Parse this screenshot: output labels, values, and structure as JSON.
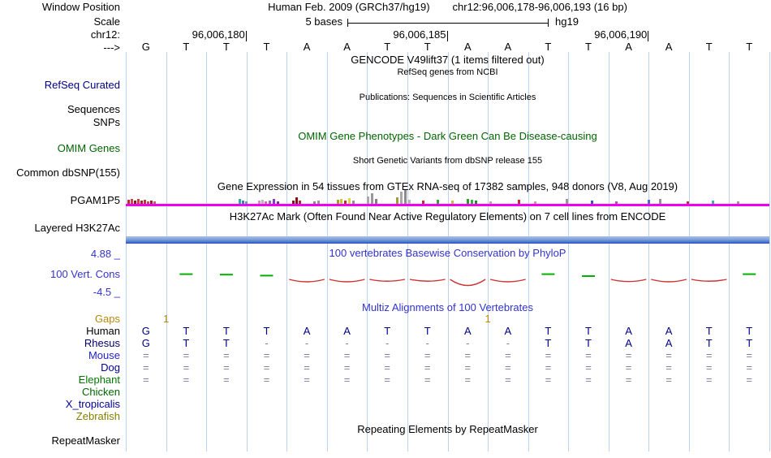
{
  "colors": {
    "guide_line": "#bdd2ec",
    "title_blue": "#3333cc",
    "track_navy": "#000080",
    "omim_green": "#006400",
    "gaps_orange": "#b8860b",
    "gtex_line_magenta": "#ee00ee",
    "cons_positive_green": "#00b000",
    "cons_negative_red": "#cc3333",
    "align_base_navy": "#000080",
    "align_symbol_gray": "#8080a0"
  },
  "header": {
    "window_position_label": "Window Position",
    "assembly": "Human Feb. 2009 (GRCh37/hg19)",
    "position": "chr12:96,006,178-96,006,193 (16 bp)",
    "scale_label": "Scale",
    "scale_bases": "5 bases",
    "genome": "hg19",
    "chrom_label": "chr12:",
    "strand_label": "--->"
  },
  "ruler": {
    "coords": [
      {
        "label": "96,006,180",
        "boundary": 3
      },
      {
        "label": "96,006,185",
        "boundary": 8
      },
      {
        "label": "96,006,190",
        "boundary": 13
      }
    ]
  },
  "sequence": [
    "G",
    "T",
    "T",
    "T",
    "A",
    "A",
    "T",
    "T",
    "A",
    "A",
    "T",
    "T",
    "A",
    "A",
    "T",
    "T"
  ],
  "tracks": {
    "gencode": {
      "title": "GENCODE V49lift37 (1 items filtered out)"
    },
    "refseq": {
      "subtitle": "RefSeq genes from NCBI",
      "label": "RefSeq Curated"
    },
    "publications": {
      "title": "Publications: Sequences in Scientific Articles"
    },
    "sequences": {
      "label": "Sequences"
    },
    "snps": {
      "label": "SNPs"
    },
    "omim": {
      "title": "OMIM Gene Phenotypes - Dark Green Can Be Disease-causing",
      "label": "OMIM Genes"
    },
    "dbsnp": {
      "title": "Short Genetic Variants from dbSNP release 155",
      "label": "Common dbSNP(155)"
    },
    "gtex": {
      "title": "Gene Expression in 54 tissues from GTEx RNA-seq of 17382 samples, 948 donors (V8, Aug 2019)",
      "gene_label": "PGAM1P5",
      "bars": [
        [
          157,
          5,
          "#b03030"
        ],
        [
          161,
          6,
          "#c84848"
        ],
        [
          165,
          4,
          "#8b1a1a"
        ],
        [
          169,
          6,
          "#d04040"
        ],
        [
          173,
          4,
          "#a02828"
        ],
        [
          177,
          5,
          "#c03838"
        ],
        [
          181,
          3,
          "#b85050"
        ],
        [
          185,
          4,
          "#982020"
        ],
        [
          189,
          3,
          "#c06060"
        ],
        [
          294,
          6,
          "#2ab0a8"
        ],
        [
          298,
          4,
          "#4878c0"
        ],
        [
          302,
          3,
          "#60a0a8"
        ],
        [
          318,
          4,
          "#e088b8"
        ],
        [
          322,
          5,
          "#b8b8b8"
        ],
        [
          326,
          3,
          "#e06898"
        ],
        [
          331,
          4,
          "#9068c8"
        ],
        [
          336,
          6,
          "#8040c0"
        ],
        [
          341,
          3,
          "#683890"
        ],
        [
          360,
          4,
          "#801818"
        ],
        [
          364,
          8,
          "#901010"
        ],
        [
          368,
          4,
          "#a83030"
        ],
        [
          386,
          3,
          "#888888"
        ],
        [
          391,
          4,
          "#989898"
        ],
        [
          415,
          5,
          "#a0a030"
        ],
        [
          419,
          6,
          "#c8c828"
        ],
        [
          424,
          4,
          "#c82828"
        ],
        [
          429,
          7,
          "#d8d848"
        ],
        [
          434,
          4,
          "#909090"
        ],
        [
          452,
          9,
          "#a8a8a8"
        ],
        [
          457,
          13,
          "#989898"
        ],
        [
          462,
          6,
          "#808080"
        ],
        [
          488,
          8,
          "#a0a038"
        ],
        [
          493,
          15,
          "#a8a8a8"
        ],
        [
          498,
          17,
          "#8c8c8c"
        ],
        [
          503,
          5,
          "#b8b8b8"
        ],
        [
          520,
          4,
          "#c03030"
        ],
        [
          538,
          5,
          "#38a038"
        ],
        [
          556,
          4,
          "#d0b838"
        ],
        [
          575,
          6,
          "#28a028"
        ],
        [
          580,
          5,
          "#38b038"
        ],
        [
          585,
          4,
          "#1f8c1f"
        ],
        [
          603,
          3,
          "#c8a0a0"
        ],
        [
          638,
          5,
          "#c03030"
        ],
        [
          658,
          3,
          "#e09090"
        ],
        [
          697,
          6,
          "#989898"
        ],
        [
          728,
          4,
          "#3858c0"
        ],
        [
          758,
          3,
          "#c048c0"
        ],
        [
          798,
          5,
          "#4870c8"
        ],
        [
          812,
          6,
          "#949494"
        ],
        [
          846,
          3,
          "#c03030"
        ],
        [
          877,
          4,
          "#38b0b0"
        ],
        [
          908,
          3,
          "#989898"
        ]
      ]
    },
    "h3k27ac": {
      "title": "H3K27Ac Mark (Often Found Near Active Regulatory Elements) on 7 cell lines from ENCODE",
      "label": "Layered H3K27Ac",
      "band_colors": [
        "#aac2e9",
        "#7b9fd9",
        "#4a74d0",
        "#2a50b8"
      ]
    },
    "conservation": {
      "title": "100 vertebrates Basewise Conservation by PhyloP",
      "label": "100 Vert. Cons",
      "max_label": "4.88 _",
      "min_label": "-4.5 _",
      "values": [
        0,
        0.45,
        0.4,
        0.3,
        -0.2,
        -0.2,
        -0.15,
        -0.15,
        -0.5,
        -0.2,
        0.45,
        0.25,
        -0.18,
        -0.2,
        -0.15,
        0.45
      ]
    },
    "multiz": {
      "title": "Multiz Alignments of 100 Vertebrates",
      "gaps_label": "Gaps",
      "gap_marks": [
        {
          "boundary": 1,
          "text": "1"
        },
        {
          "boundary": 9,
          "text": "1"
        }
      ],
      "rows": [
        {
          "name": "Human",
          "color": "#000000",
          "cells": [
            "G",
            "T",
            "T",
            "T",
            "A",
            "A",
            "T",
            "T",
            "A",
            "A",
            "T",
            "T",
            "A",
            "A",
            "T",
            "T"
          ]
        },
        {
          "name": "Rhesus",
          "color": "#000066",
          "cells": [
            "G",
            "T",
            "T",
            "-",
            "-",
            "-",
            "-",
            "-",
            "-",
            "-",
            "T",
            "T",
            "A",
            "A",
            "T",
            "T"
          ]
        },
        {
          "name": "Mouse",
          "color": "#2222cc",
          "cells": [
            "=",
            "=",
            "=",
            "=",
            "=",
            "=",
            "=",
            "=",
            "=",
            "=",
            "=",
            "=",
            "=",
            "=",
            "=",
            "="
          ]
        },
        {
          "name": "Dog",
          "color": "#000099",
          "cells": [
            "=",
            "=",
            "=",
            "=",
            "=",
            "=",
            "=",
            "=",
            "=",
            "=",
            "=",
            "=",
            "=",
            "=",
            "=",
            "="
          ]
        },
        {
          "name": "Elephant",
          "color": "#007700",
          "cells": [
            "=",
            "=",
            "=",
            "=",
            "=",
            "=",
            "=",
            "=",
            "=",
            "=",
            "=",
            "=",
            "=",
            "=",
            "=",
            "="
          ]
        },
        {
          "name": "Chicken",
          "color": "#006400",
          "cells": []
        },
        {
          "name": "X_tropicalis",
          "color": "#000099",
          "cells": []
        },
        {
          "name": "Zebrafish",
          "color": "#808000",
          "cells": []
        }
      ]
    },
    "repeatmasker": {
      "title": "Repeating Elements by RepeatMasker",
      "label": "RepeatMasker"
    }
  }
}
